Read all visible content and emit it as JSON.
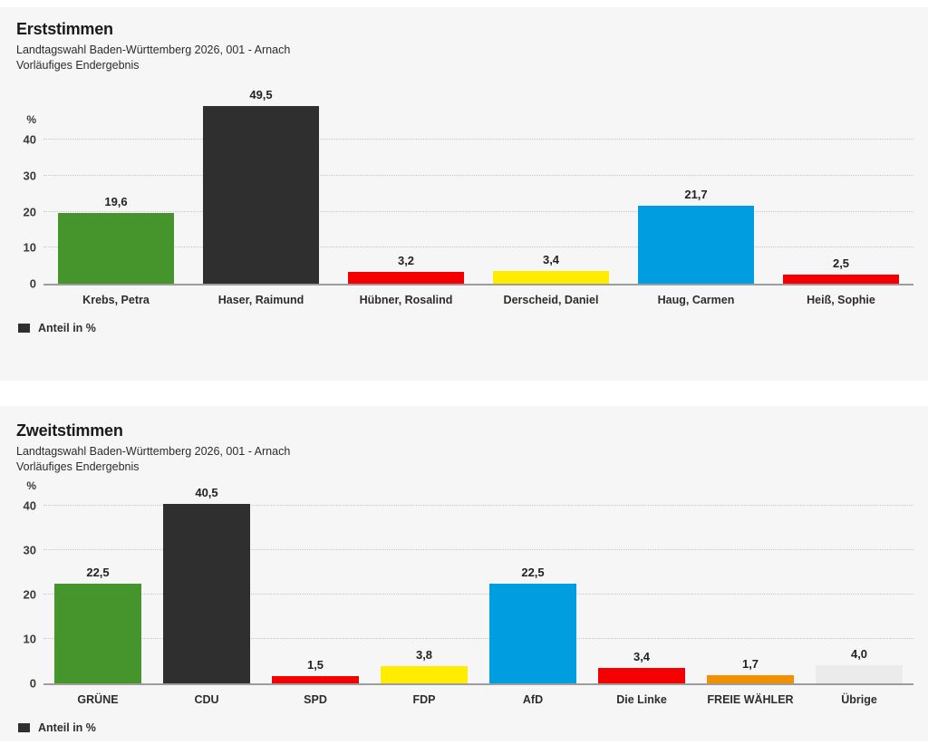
{
  "chart_data": [
    {
      "type": "bar",
      "title": "Erststimmen",
      "subtitle1": "Landtagswahl Baden-Württemberg 2026, 001 - Arnach",
      "subtitle2": "Vorläufiges Endergebnis",
      "legend": "Anteil in %",
      "ylabel": "%",
      "categories": [
        "Krebs, Petra",
        "Haser, Raimund",
        "Hübner, Rosalind",
        "Derscheid, Daniel",
        "Haug, Carmen",
        "Heiß, Sophie"
      ],
      "values": [
        19.6,
        49.5,
        3.2,
        3.4,
        21.7,
        2.5
      ],
      "value_labels": [
        "19,6",
        "49,5",
        "3,2",
        "3,4",
        "21,7",
        "2,5"
      ],
      "colors": [
        "#46952c",
        "#2f2f2f",
        "#f50000",
        "#ffec00",
        "#009ee0",
        "#f50000"
      ],
      "yticks": [
        40,
        30,
        20,
        10,
        0
      ],
      "ylim": [
        0,
        50
      ],
      "grid": "horizontal-dotted",
      "legend_position": "bottom-left"
    },
    {
      "type": "bar",
      "title": "Zweitstimmen",
      "subtitle1": "Landtagswahl Baden-Württemberg 2026, 001 - Arnach",
      "subtitle2": "Vorläufiges Endergebnis",
      "legend": "Anteil in %",
      "ylabel": "%",
      "categories": [
        "GRÜNE",
        "CDU",
        "SPD",
        "FDP",
        "AfD",
        "Die Linke",
        "FREIE WÄHLER",
        "Übrige"
      ],
      "values": [
        22.5,
        40.5,
        1.5,
        3.8,
        22.5,
        3.4,
        1.7,
        4.0
      ],
      "value_labels": [
        "22,5",
        "40,5",
        "1,5",
        "3,8",
        "22,5",
        "3,4",
        "1,7",
        "4,0"
      ],
      "colors": [
        "#46952c",
        "#2f2f2f",
        "#f50000",
        "#ffec00",
        "#009ee0",
        "#f50000",
        "#f29100",
        "#ebebeb"
      ],
      "yticks": [
        40,
        30,
        20,
        10,
        0
      ],
      "ylim": [
        0,
        42.5
      ],
      "grid": "horizontal-dotted",
      "legend_position": "bottom-left"
    }
  ]
}
